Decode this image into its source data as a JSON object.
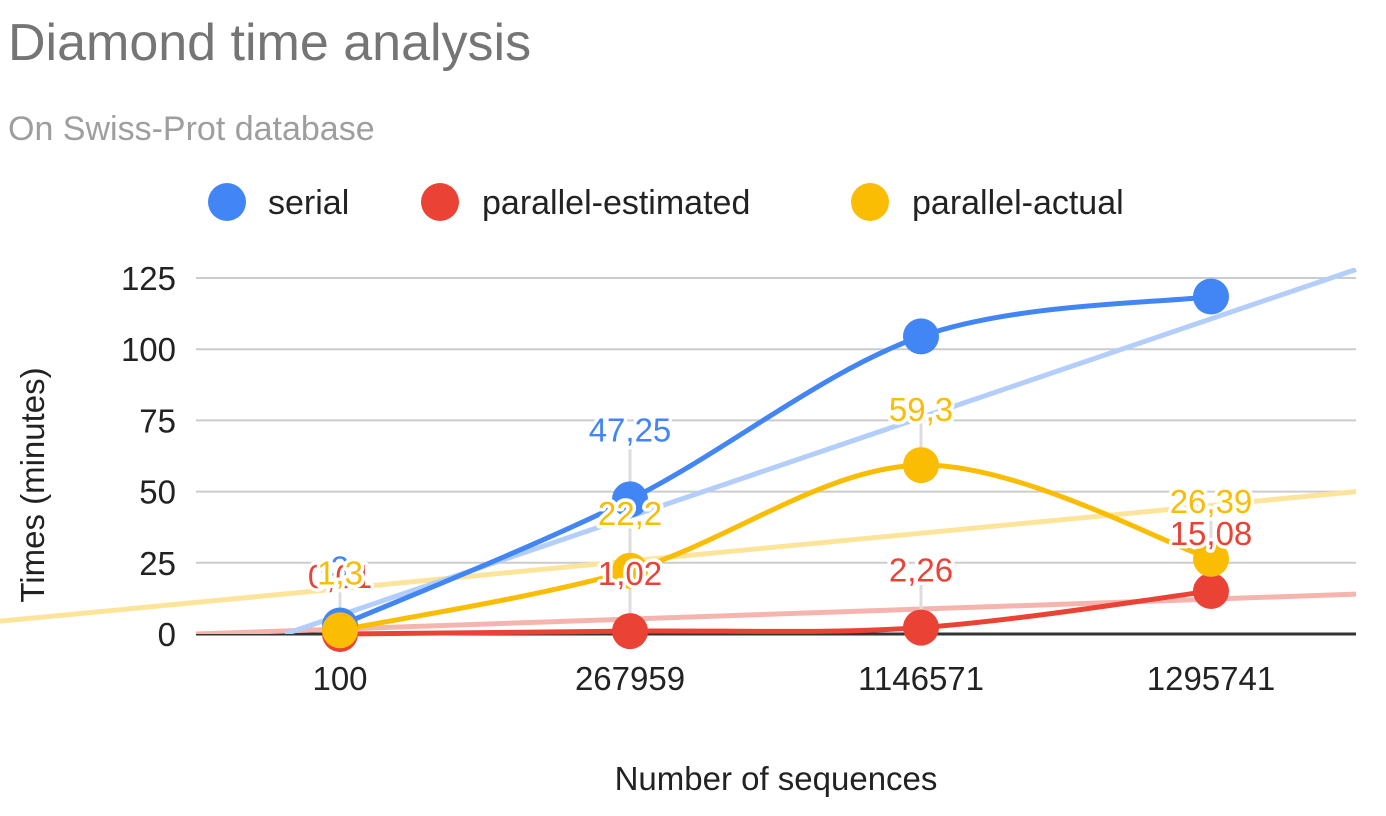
{
  "chart_data": {
    "type": "line",
    "title": "Diamond time analysis",
    "subtitle": "On Swiss-Prot database",
    "xlabel": "Number of sequences",
    "ylabel": "Times (minutes)",
    "categories": [
      "100",
      "267959",
      "1146571",
      "1295741"
    ],
    "ylim": [
      0,
      125
    ],
    "yticks": [
      0,
      25,
      50,
      75,
      100,
      125
    ],
    "grid": true,
    "legend": "top",
    "series": [
      {
        "name": "serial",
        "color": "#4285f4",
        "trend_color": "#b3cefb",
        "values": [
          3,
          47.25,
          104.5,
          118.5
        ],
        "labels": [
          "3",
          "47,25",
          "",
          ""
        ],
        "trendline": [
          -3.7,
          128
        ]
      },
      {
        "name": "parallel-estimated",
        "color": "#ea4335",
        "trend_color": "#f6b4ae",
        "values": [
          0.01,
          1.02,
          2.26,
          15.08
        ],
        "labels": [
          "0,01",
          "1,02",
          "2,26",
          "15,08"
        ],
        "trendline": [
          0,
          14
        ]
      },
      {
        "name": "parallel-actual",
        "color": "#fbbc04",
        "trend_color": "#fde49b",
        "values": [
          1.3,
          22.2,
          59.3,
          26.39
        ],
        "labels": [
          "1,3",
          "22,2",
          "59,3",
          "26,39"
        ],
        "trendline": [
          5,
          50
        ]
      }
    ]
  }
}
